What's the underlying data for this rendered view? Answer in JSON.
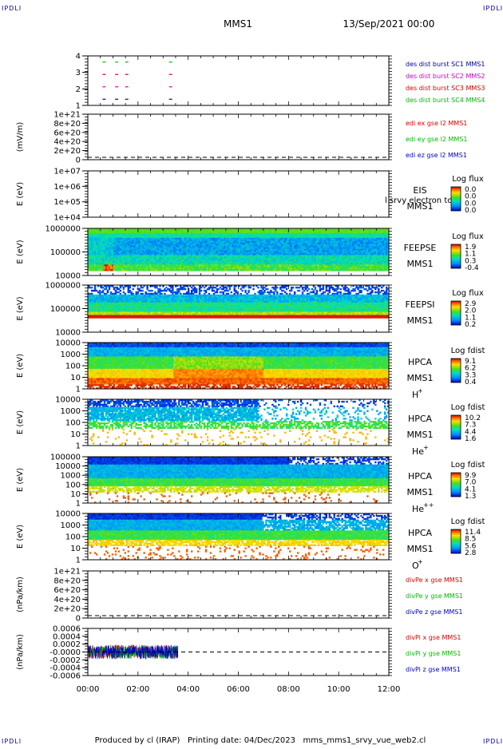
{
  "corner_marks": [
    "IPDLI",
    "IPDLI",
    "IPDLI",
    "IPDLI"
  ],
  "header": {
    "spacecraft": "MMS1",
    "datetime": "13/Sep/2021 00:00"
  },
  "footer": {
    "text": "Produced by cl (IRAP)   Printing date: 04/Dec/2023   mms_mms1_srvy_vue_web2.cl"
  },
  "time_axis": {
    "start": "00:00",
    "end": "12:00",
    "ticks": [
      "00:00",
      "02:00",
      "04:00",
      "06:00",
      "08:00",
      "10:00",
      "12:00"
    ]
  },
  "colors": {
    "black": "#000000",
    "red": "#dd0000",
    "green": "#00bb00",
    "blue": "#0000cc",
    "magenta": "#cc00cc",
    "mms1": "#000099",
    "ipdl": "#0000aa"
  },
  "chart_data": [
    {
      "type": "scatter",
      "panel_index": 0,
      "ylabel": "",
      "yticks": [
        "4",
        "3",
        "2",
        "1"
      ],
      "ylim": [
        0.5,
        4.5
      ],
      "legend": [
        {
          "text": "des dist burst SC1 MMS1",
          "color": "#000099"
        },
        {
          "text": "des dist burst SC2 MMS2",
          "color": "#cc00cc"
        },
        {
          "text": "des dist burst SC3 MMS3",
          "color": "#dd0000"
        },
        {
          "text": "des dist burst SC4 MMS4",
          "color": "#00bb00"
        }
      ],
      "series": [
        {
          "name": "des dist burst SC1 MMS1",
          "color": "#000099",
          "y": 1,
          "x_hours": [
            0.65,
            1.15,
            1.55,
            3.3
          ]
        },
        {
          "name": "des dist burst SC2 MMS2",
          "color": "#cc00cc",
          "y": 2,
          "x_hours": [
            0.65,
            1.15,
            1.55,
            3.3
          ]
        },
        {
          "name": "des dist burst SC3 MMS3",
          "color": "#dd0000",
          "y": 3,
          "x_hours": [
            0.65,
            1.15,
            1.55,
            3.3
          ]
        },
        {
          "name": "des dist burst SC4 MMS4",
          "color": "#00bb00",
          "y": 4,
          "x_hours": [
            0.65,
            1.15,
            1.55,
            3.3
          ]
        }
      ]
    },
    {
      "type": "line",
      "panel_index": 1,
      "ylabel": "(mV/m)",
      "yticks": [
        "1e+21",
        "8e+20",
        "6e+20",
        "4e+20",
        "2e+20",
        "0"
      ],
      "ylim": [
        0,
        1e+21
      ],
      "zero_line": true,
      "legend": [
        {
          "text": "edi ex gse l2 MMS1",
          "color": "#dd0000"
        },
        {
          "text": "edi ey gse l2 MMS1",
          "color": "#00bb00"
        },
        {
          "text": "edi ez gse l2 MMS1",
          "color": "#0000cc"
        }
      ]
    },
    {
      "type": "heatmap",
      "panel_index": 2,
      "ylabel": "E (eV)",
      "yticks": [
        "1e+07",
        "1e+06",
        "1e+05",
        "1e+04"
      ],
      "ylim": [
        10000,
        10000000
      ],
      "log": true,
      "right_labels": [
        "EIS",
        "MMS1"
      ],
      "overlay_text": "l srvy electron to",
      "colorbar": {
        "title": "Log flux",
        "ticks": [
          "0.0",
          "0.0",
          "0.0",
          "0.0"
        ]
      },
      "empty": true
    },
    {
      "type": "heatmap",
      "panel_index": 3,
      "ylabel": "E (eV)",
      "yticks": [
        "1000000",
        "100000",
        "10000"
      ],
      "ylim": [
        10000,
        1000000
      ],
      "log": true,
      "right_labels": [
        "FEEPSE",
        "MMS1"
      ],
      "colorbar": {
        "title": "Log flux",
        "ticks": [
          "1.9",
          "1.1",
          "0.3",
          "-0.4"
        ]
      },
      "description_levels": [
        0.15,
        0.3,
        0.45,
        0.6,
        0.5,
        0.35
      ]
    },
    {
      "type": "heatmap",
      "panel_index": 4,
      "ylabel": "E (eV)",
      "yticks": [
        "1000000",
        "100000",
        "10000"
      ],
      "ylim": [
        10000,
        1000000
      ],
      "log": true,
      "right_labels": [
        "FEEPSI",
        "MMS1"
      ],
      "colorbar": {
        "title": "Log flux",
        "ticks": [
          "2.9",
          "2.0",
          "1.1",
          "0.2"
        ]
      }
    },
    {
      "type": "heatmap",
      "panel_index": 5,
      "ylabel": "E (eV)",
      "yticks": [
        "10000",
        "1000",
        "100",
        "10",
        "1"
      ],
      "ylim": [
        1,
        30000
      ],
      "log": true,
      "right_labels": [
        "HPCA",
        "MMS1",
        "H",
        "+"
      ],
      "colorbar": {
        "title": "Log fdist",
        "ticks": [
          "9.1",
          "6.2",
          "3.3",
          "0.4"
        ]
      }
    },
    {
      "type": "heatmap",
      "panel_index": 6,
      "ylabel": "E (eV)",
      "yticks": [
        "10000",
        "1000",
        "100",
        "10",
        "1"
      ],
      "ylim": [
        1,
        30000
      ],
      "log": true,
      "right_labels": [
        "HPCA",
        "MMS1",
        "He",
        "+"
      ],
      "colorbar": {
        "title": "Log fdist",
        "ticks": [
          "10.2",
          "7.3",
          "4.4",
          "1.6"
        ]
      }
    },
    {
      "type": "heatmap",
      "panel_index": 7,
      "ylabel": "E (eV)",
      "yticks": [
        "100000",
        "10000",
        "1000",
        "100",
        "10",
        "1"
      ],
      "ylim": [
        1,
        100000
      ],
      "log": true,
      "right_labels": [
        "HPCA",
        "MMS1",
        "He",
        "++"
      ],
      "colorbar": {
        "title": "Log fdist",
        "ticks": [
          "9.9",
          "7.0",
          "4.1",
          "1.3"
        ]
      }
    },
    {
      "type": "heatmap",
      "panel_index": 8,
      "ylabel": "E (eV)",
      "yticks": [
        "10000",
        "1000",
        "100",
        "10",
        "1"
      ],
      "ylim": [
        1,
        30000
      ],
      "log": true,
      "right_labels": [
        "HPCA",
        "MMS1",
        "O",
        "+"
      ],
      "colorbar": {
        "title": "Log fdist",
        "ticks": [
          "11.4",
          "8.5",
          "5.6",
          "2.8"
        ]
      }
    },
    {
      "type": "line",
      "panel_index": 9,
      "ylabel": "(nPa/km)",
      "yticks": [
        "1e+21",
        "8e+20",
        "6e+20",
        "4e+20",
        "2e+20",
        "0"
      ],
      "ylim": [
        0,
        1e+21
      ],
      "zero_line": true,
      "legend": [
        {
          "text": "divPe x gse MMS1",
          "color": "#dd0000"
        },
        {
          "text": "divPe y gse MMS1",
          "color": "#00bb00"
        },
        {
          "text": "divPe z gse MMS1",
          "color": "#0000cc"
        }
      ]
    },
    {
      "type": "line",
      "panel_index": 10,
      "ylabel": "(nPa/km)",
      "yticks": [
        "0.0006",
        "0.0004",
        "0.0002",
        "-0.0000",
        "-0.0002",
        "-0.0004",
        "-0.0006"
      ],
      "ylim": [
        -0.0006,
        0.0006
      ],
      "zero_line": true,
      "data_end_hours": 3.6,
      "legend": [
        {
          "text": "divPi x gse MMS1",
          "color": "#dd0000"
        },
        {
          "text": "divPi y gse MMS1",
          "color": "#00bb00"
        },
        {
          "text": "divPi z gse MMS1",
          "color": "#0000cc"
        }
      ]
    }
  ]
}
